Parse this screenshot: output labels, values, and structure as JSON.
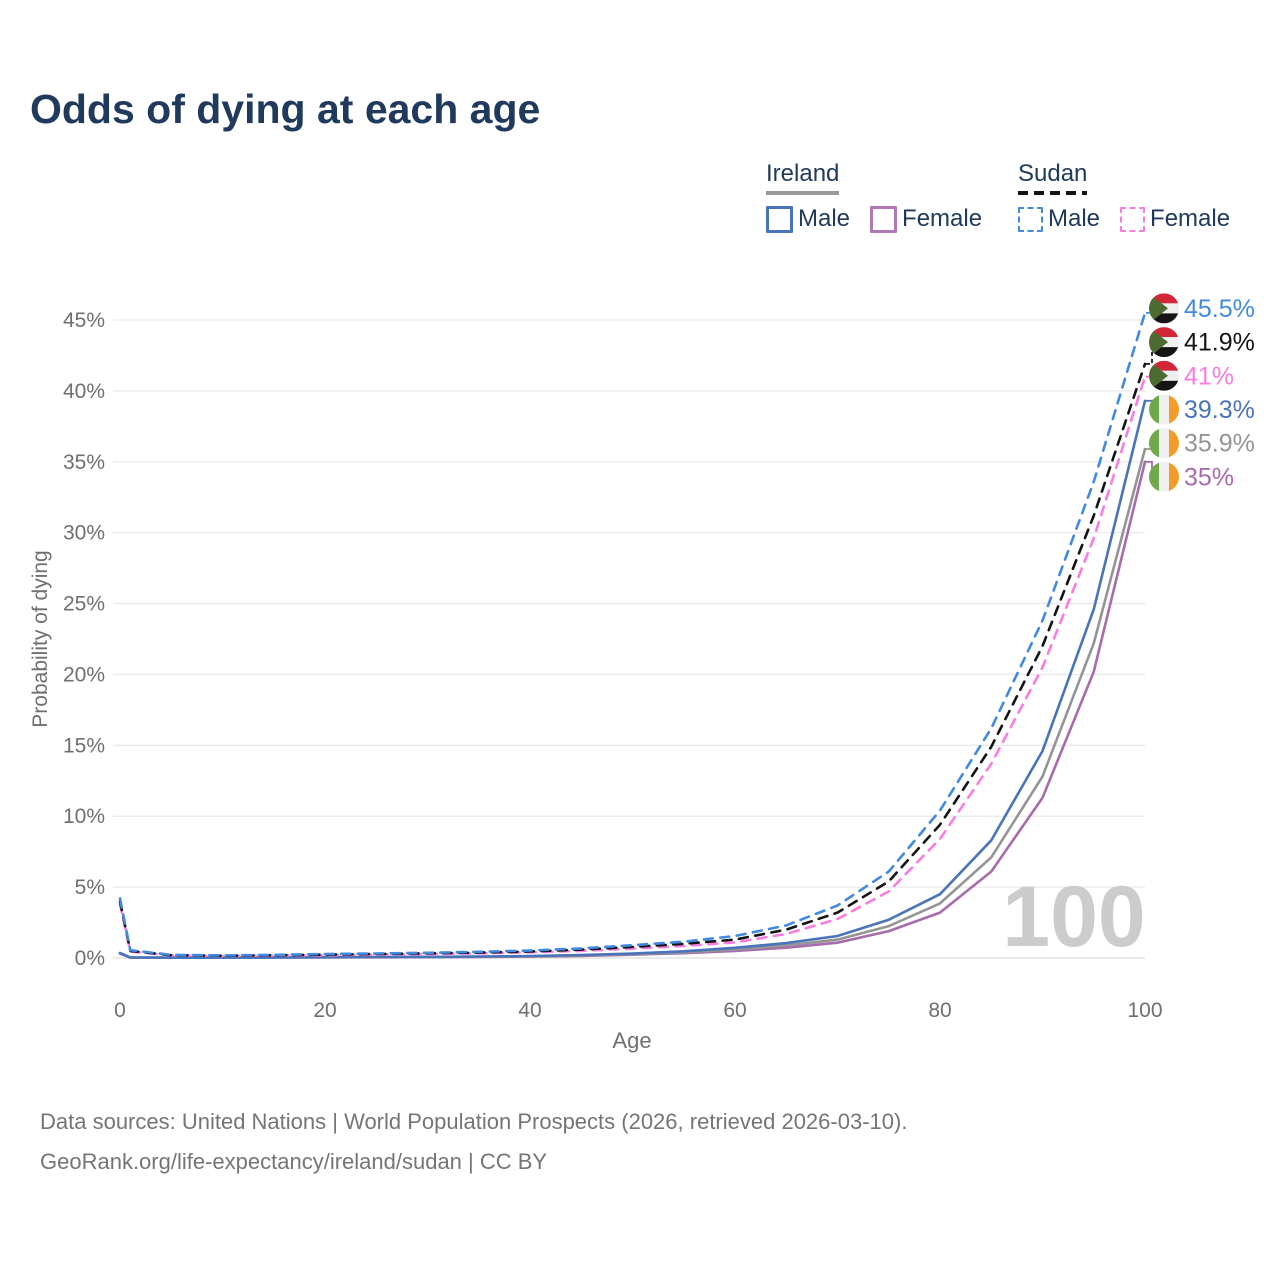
{
  "title": "Odds of dying at each age",
  "legend": {
    "groups": [
      {
        "name": "Ireland",
        "line_style": "solid",
        "underline_color": "#9a9a9a",
        "items": [
          {
            "label": "Male",
            "color": "#4a74ba"
          },
          {
            "label": "Female",
            "color": "#b077b4"
          }
        ]
      },
      {
        "name": "Sudan",
        "line_style": "dashed",
        "underline_color": "#141414",
        "items": [
          {
            "label": "Male",
            "color": "#4189e1"
          },
          {
            "label": "Female",
            "color": "#fb7ce0"
          }
        ]
      }
    ]
  },
  "chart_data": {
    "type": "line",
    "title": "Odds of dying at each age",
    "xlabel": "Age",
    "ylabel": "Probability of dying",
    "xlim": [
      0,
      100
    ],
    "ylim": [
      0,
      45
    ],
    "xticks": [
      0,
      20,
      40,
      60,
      80,
      100
    ],
    "ytick_labels": [
      "0%",
      "5%",
      "10%",
      "15%",
      "20%",
      "25%",
      "30%",
      "35%",
      "40%",
      "45%"
    ],
    "grid": "horizontal",
    "watermark": "100",
    "x": [
      0,
      1,
      5,
      10,
      15,
      20,
      25,
      30,
      35,
      40,
      45,
      50,
      55,
      60,
      65,
      70,
      75,
      80,
      85,
      90,
      95,
      100
    ],
    "series": [
      {
        "name": "Sudan Male",
        "country": "Sudan",
        "sex": "Male",
        "color": "#4189e1",
        "dash": true,
        "end_label": "45.5%",
        "end_value": 45.5,
        "values": [
          4.2,
          0.55,
          0.22,
          0.18,
          0.22,
          0.28,
          0.32,
          0.37,
          0.44,
          0.53,
          0.68,
          0.9,
          1.15,
          1.55,
          2.3,
          3.7,
          6.1,
          10.4,
          16.2,
          23.8,
          33.6,
          45.5
        ]
      },
      {
        "name": "Sudan Both sexes",
        "country": "Sudan",
        "sex": "Both",
        "color": "#141414",
        "dash": true,
        "end_label": "41.9%",
        "end_value": 41.9,
        "values": [
          4.0,
          0.5,
          0.2,
          0.16,
          0.19,
          0.24,
          0.28,
          0.33,
          0.38,
          0.46,
          0.59,
          0.78,
          1.0,
          1.3,
          2.0,
          3.2,
          5.4,
          9.4,
          14.9,
          22.0,
          31.2,
          41.9
        ]
      },
      {
        "name": "Sudan Female",
        "country": "Sudan",
        "sex": "Female",
        "color": "#fb7ce0",
        "dash": true,
        "end_label": "41%",
        "end_value": 41.0,
        "values": [
          3.8,
          0.46,
          0.18,
          0.15,
          0.17,
          0.2,
          0.24,
          0.28,
          0.33,
          0.4,
          0.5,
          0.66,
          0.85,
          1.1,
          1.7,
          2.75,
          4.7,
          8.4,
          13.7,
          20.5,
          29.6,
          41.0
        ]
      },
      {
        "name": "Ireland Male",
        "country": "Ireland",
        "sex": "Male",
        "color": "#4a74ba",
        "dash": false,
        "end_label": "39.3%",
        "end_value": 39.3,
        "values": [
          0.35,
          0.04,
          0.02,
          0.02,
          0.04,
          0.06,
          0.07,
          0.08,
          0.1,
          0.14,
          0.21,
          0.31,
          0.47,
          0.72,
          1.05,
          1.55,
          2.7,
          4.5,
          8.3,
          14.6,
          24.6,
          39.3
        ]
      },
      {
        "name": "Ireland Both sexes",
        "country": "Ireland",
        "sex": "Both",
        "color": "#949494",
        "dash": false,
        "end_label": "35.9%",
        "end_value": 35.9,
        "values": [
          0.33,
          0.04,
          0.02,
          0.02,
          0.03,
          0.05,
          0.06,
          0.07,
          0.09,
          0.12,
          0.18,
          0.27,
          0.4,
          0.6,
          0.88,
          1.3,
          2.25,
          3.85,
          7.1,
          12.8,
          22.2,
          35.9
        ]
      },
      {
        "name": "Ireland Female",
        "country": "Ireland",
        "sex": "Female",
        "color": "#a86bac",
        "dash": false,
        "end_label": "35%",
        "end_value": 35.0,
        "values": [
          0.3,
          0.03,
          0.02,
          0.02,
          0.03,
          0.04,
          0.05,
          0.06,
          0.08,
          0.1,
          0.15,
          0.23,
          0.34,
          0.5,
          0.73,
          1.08,
          1.9,
          3.2,
          6.1,
          11.3,
          20.2,
          35.0
        ]
      }
    ],
    "flags": {
      "Sudan": {
        "stripes": [
          "#d32637",
          "#efefef",
          "#151515"
        ],
        "triangle": "#4e6b33"
      },
      "Ireland": {
        "bands": [
          "#70a94b",
          "#efefef",
          "#f49b28"
        ]
      }
    }
  },
  "footer": {
    "line1": "Data sources: United Nations | World Population Prospects (2026, retrieved 2026-03-10).",
    "line2": "GeoRank.org/life-expectancy/ireland/sudan | CC BY"
  }
}
